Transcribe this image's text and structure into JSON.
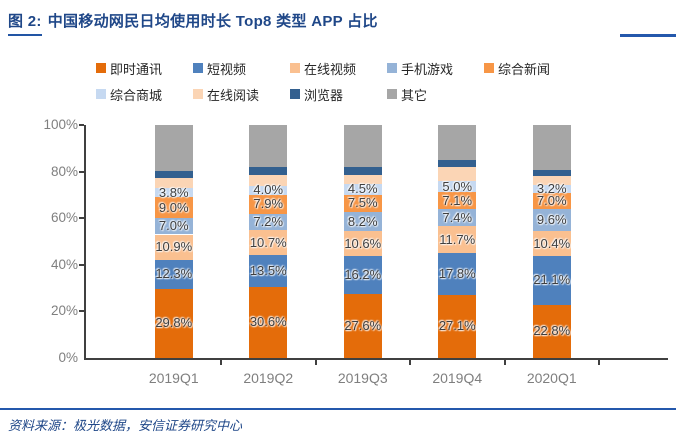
{
  "title": {
    "prefix": "图 2:",
    "text": "中国移动网民日均使用时长 Top8 类型 APP 占比"
  },
  "source": "资料来源：极光数据，安信证券研究中心",
  "accent_colors": {
    "title_navy": "#1F4788",
    "rule_blue": "#2458AC",
    "axis_gray": "#404040",
    "tick_label_gray": "#7F7F7F",
    "data_label_gray": "#3F3F3F"
  },
  "chart_data": {
    "type": "bar",
    "stacked": true,
    "unit": "%",
    "title": "中国移动网民日均使用时长 Top8 类型 APP 占比",
    "categories": [
      "2019Q1",
      "2019Q2",
      "2019Q3",
      "2019Q4",
      "2020Q1"
    ],
    "series": [
      {
        "name": "即时通讯",
        "color": "#E46C0A",
        "labeled": true,
        "values": [
          29.8,
          30.6,
          27.6,
          27.1,
          22.8
        ]
      },
      {
        "name": "短视频",
        "color": "#4F81BD",
        "labeled": true,
        "values": [
          12.3,
          13.5,
          16.2,
          17.8,
          21.1
        ]
      },
      {
        "name": "在线视频",
        "color": "#FAC090",
        "labeled": true,
        "values": [
          10.9,
          10.7,
          10.6,
          11.7,
          10.4
        ]
      },
      {
        "name": "手机游戏",
        "color": "#95B3D7",
        "labeled": true,
        "values": [
          7.0,
          7.2,
          8.2,
          7.4,
          9.6
        ]
      },
      {
        "name": "综合新闻",
        "color": "#F79646",
        "labeled": true,
        "values": [
          9.0,
          7.9,
          7.5,
          7.1,
          7.0
        ]
      },
      {
        "name": "综合商城",
        "color": "#C6D9F1",
        "labeled": true,
        "values": [
          3.8,
          4.0,
          4.5,
          5.0,
          3.2
        ]
      },
      {
        "name": "在线阅读",
        "color": "#FBD5B5",
        "labeled": false,
        "estimated": true,
        "values": [
          4.3,
          4.6,
          3.9,
          6.0,
          3.9
        ]
      },
      {
        "name": "浏览器",
        "color": "#33608F",
        "labeled": false,
        "estimated": true,
        "values": [
          3.2,
          3.4,
          3.3,
          3.0,
          2.6
        ]
      },
      {
        "name": "其它",
        "color": "#A6A6A6",
        "labeled": false,
        "estimated": true,
        "values": [
          19.7,
          18.1,
          18.2,
          14.9,
          19.4
        ]
      }
    ],
    "ylim": [
      0,
      100
    ],
    "yticks": [
      "0%",
      "20%",
      "40%",
      "60%",
      "80%",
      "100%"
    ],
    "grid": false,
    "legend_position": "top",
    "legend_rows": [
      [
        "即时通讯",
        "短视频",
        "在线视频",
        "手机游戏",
        "综合新闻"
      ],
      [
        "综合商城",
        "在线阅读",
        "浏览器",
        "其它"
      ]
    ]
  }
}
